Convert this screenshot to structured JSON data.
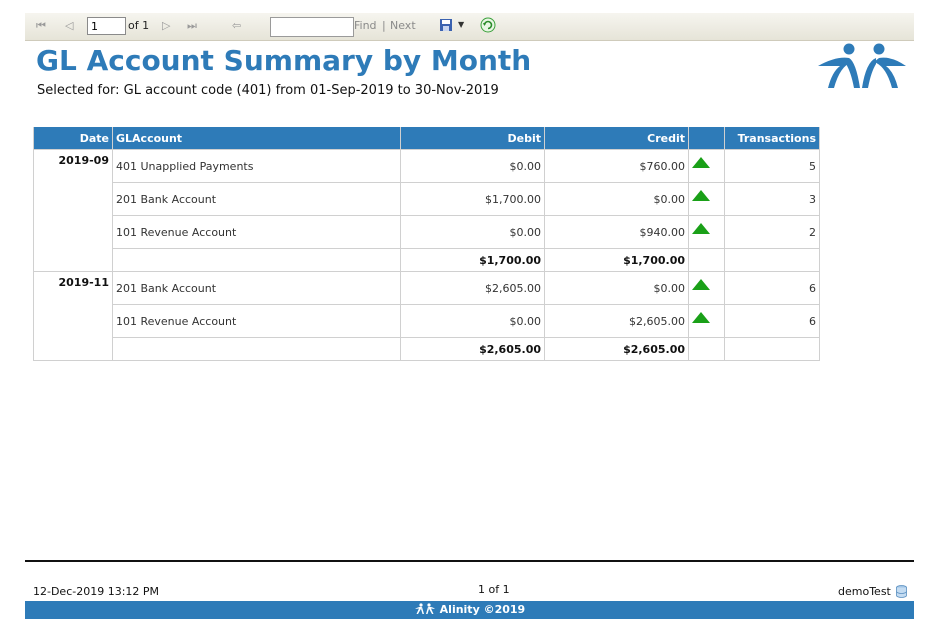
{
  "toolbar": {
    "page_value": "1",
    "of_label": "of 1",
    "find_label": "Find",
    "separator": "|",
    "next_label": "Next",
    "first_icon": "first-page-icon",
    "prev_icon": "previous-page-icon",
    "next_page_icon": "next-page-icon",
    "last_icon": "last-page-icon",
    "back_icon": "back-icon",
    "save_icon": "save-icon",
    "refresh_icon": "refresh-icon"
  },
  "report": {
    "title": "GL Account Summary by Month",
    "subtitle": "Selected for: GL account code (401) from 01-Sep-2019 to 30-Nov-2019"
  },
  "table": {
    "headers": {
      "date": "Date",
      "account": "GLAccount",
      "debit": "Debit",
      "credit": "Credit",
      "transactions": "Transactions"
    },
    "groups": [
      {
        "date": "2019-09",
        "rows": [
          {
            "account": "401 Unapplied Payments",
            "debit": "$0.00",
            "credit": "$760.00",
            "transactions": "5"
          },
          {
            "account": "201 Bank Account",
            "debit": "$1,700.00",
            "credit": "$0.00",
            "transactions": "3"
          },
          {
            "account": "101 Revenue Account",
            "debit": "$0.00",
            "credit": "$940.00",
            "transactions": "2"
          }
        ],
        "total_debit": "$1,700.00",
        "total_credit": "$1,700.00"
      },
      {
        "date": "2019-11",
        "rows": [
          {
            "account": "201 Bank Account",
            "debit": "$2,605.00",
            "credit": "$0.00",
            "transactions": "6"
          },
          {
            "account": "101 Revenue Account",
            "debit": "$0.00",
            "credit": "$2,605.00",
            "transactions": "6"
          }
        ],
        "total_debit": "$2,605.00",
        "total_credit": "$2,605.00"
      }
    ],
    "drill_icon": "drill-up-triangle-icon"
  },
  "footer": {
    "datetime": "12-Dec-2019 13:12 PM",
    "page": "1 of 1",
    "user": "demoTest",
    "brand": "Alinity ©2019",
    "db_icon": "database-icon"
  },
  "colors": {
    "accent": "#2e7bb8",
    "triangle": "#1aa018"
  }
}
